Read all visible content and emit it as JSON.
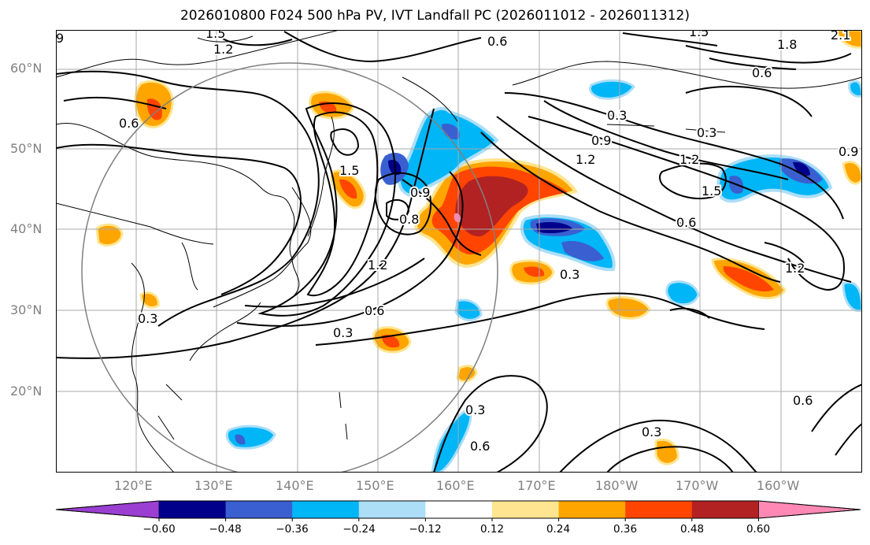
{
  "title": "2026010800 F024 500 hPa PV, IVT Landfall PC (2026011012 - 2026011312)",
  "lat_labels": [
    "60°N",
    "50°N",
    "40°N",
    "30°N",
    "20°N"
  ],
  "lon_labels": [
    "120°E",
    "130°E",
    "140°E",
    "150°E",
    "160°E",
    "170°E",
    "180°W",
    "170°W",
    "160°W"
  ],
  "colorbar": {
    "levels": [
      "−0.60",
      "−0.48",
      "−0.36",
      "−0.24",
      "−0.12",
      "0.12",
      "0.24",
      "0.36",
      "0.48",
      "0.60"
    ],
    "colors": [
      "#9a3fd1",
      "#00008b",
      "#3a5fd0",
      "#00b6f6",
      "#acdef8",
      "#ffffff",
      "#ffe590",
      "#ffa500",
      "#ff4500",
      "#b22222",
      "#ff89b4"
    ]
  },
  "contour_labels": [
    "1.5",
    "1.2",
    "0.6",
    "1.5",
    "2.1",
    "1.8",
    "0.6",
    "0.6",
    "0.3",
    "0.9",
    "1.2",
    "0.3",
    "1.2",
    "1.5",
    "0.6",
    "1.2",
    "0.3",
    "0.6",
    "0.3",
    "0.3",
    "0.3",
    "0.6",
    "0.3",
    "1.2",
    "1.5",
    "0.9",
    "0.8",
    "9",
    "0.6",
    "0.9"
  ]
}
